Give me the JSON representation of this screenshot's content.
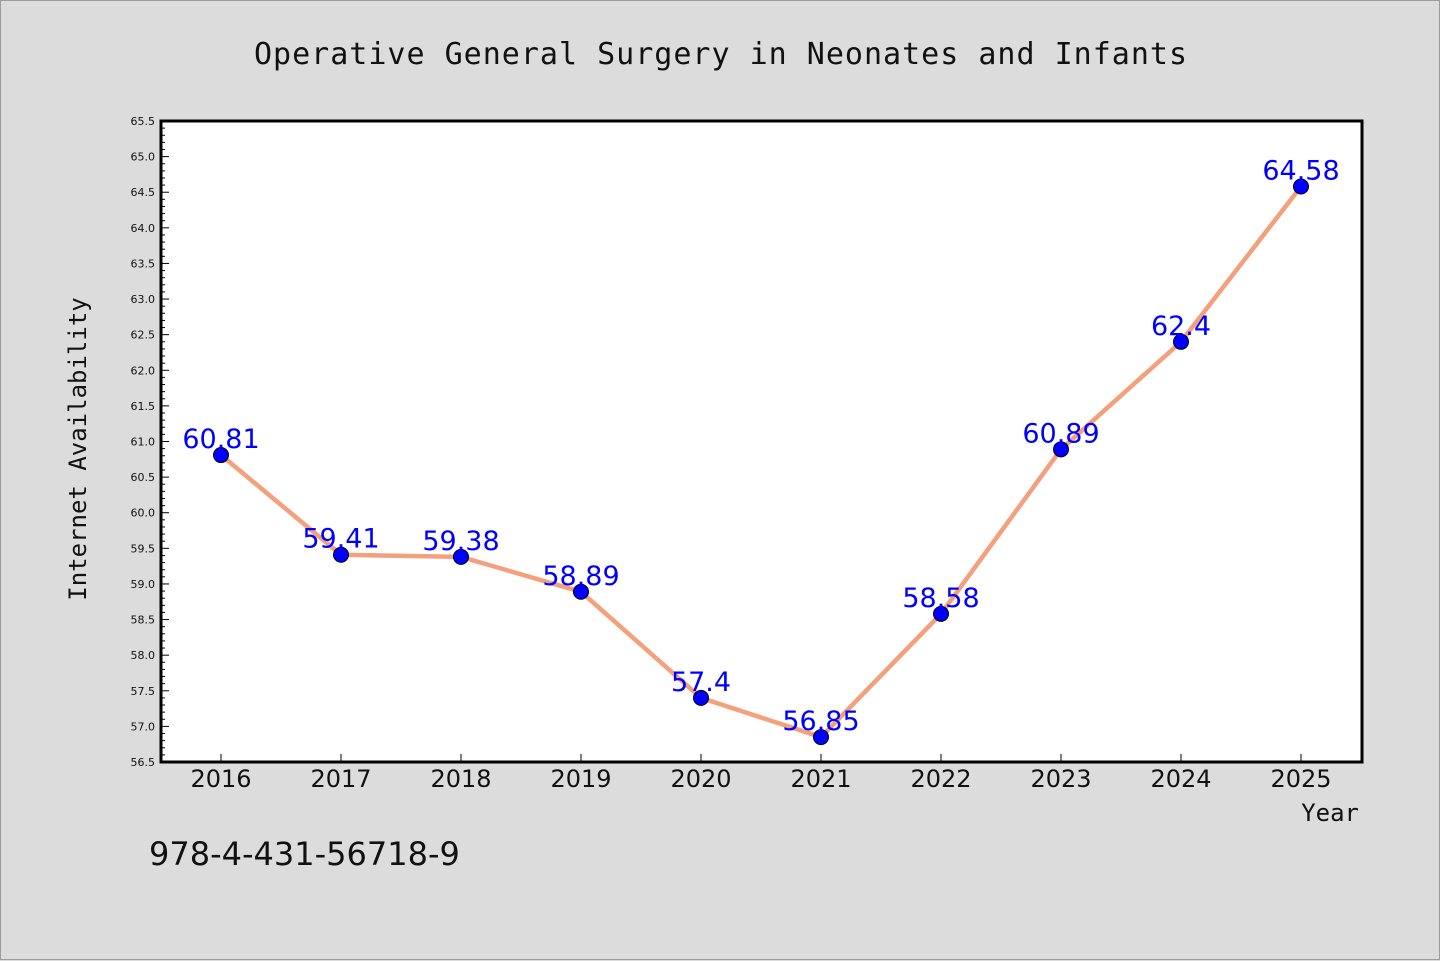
{
  "chart_data": {
    "type": "line",
    "title": "Operative General Surgery in Neonates and Infants",
    "xlabel": "Year",
    "ylabel": "Internet Availability",
    "categories": [
      "2016",
      "2017",
      "2018",
      "2019",
      "2020",
      "2021",
      "2022",
      "2023",
      "2024",
      "2025"
    ],
    "values": [
      60.81,
      59.41,
      59.38,
      58.89,
      57.4,
      56.85,
      58.58,
      60.89,
      62.4,
      64.58
    ],
    "data_labels": [
      "60.81",
      "59.41",
      "59.38",
      "58.89",
      "57.4",
      "56.85",
      "58.58",
      "60.89",
      "62.4",
      "64.58"
    ],
    "ylim": [
      56.5,
      65.5
    ],
    "yticks": [
      "56.5",
      "57.0",
      "57.5",
      "58.0",
      "58.5",
      "59.0",
      "59.5",
      "60.0",
      "60.5",
      "61.0",
      "61.5",
      "62.0",
      "62.5",
      "63.0",
      "63.5",
      "64.0",
      "64.5",
      "65.0",
      "65.5"
    ],
    "grid": false,
    "line_color": "#f4a07c",
    "marker_color": "#0000ff",
    "label_color": "#0000ff"
  },
  "footer": {
    "isbn": "978-4-431-56718-9"
  }
}
